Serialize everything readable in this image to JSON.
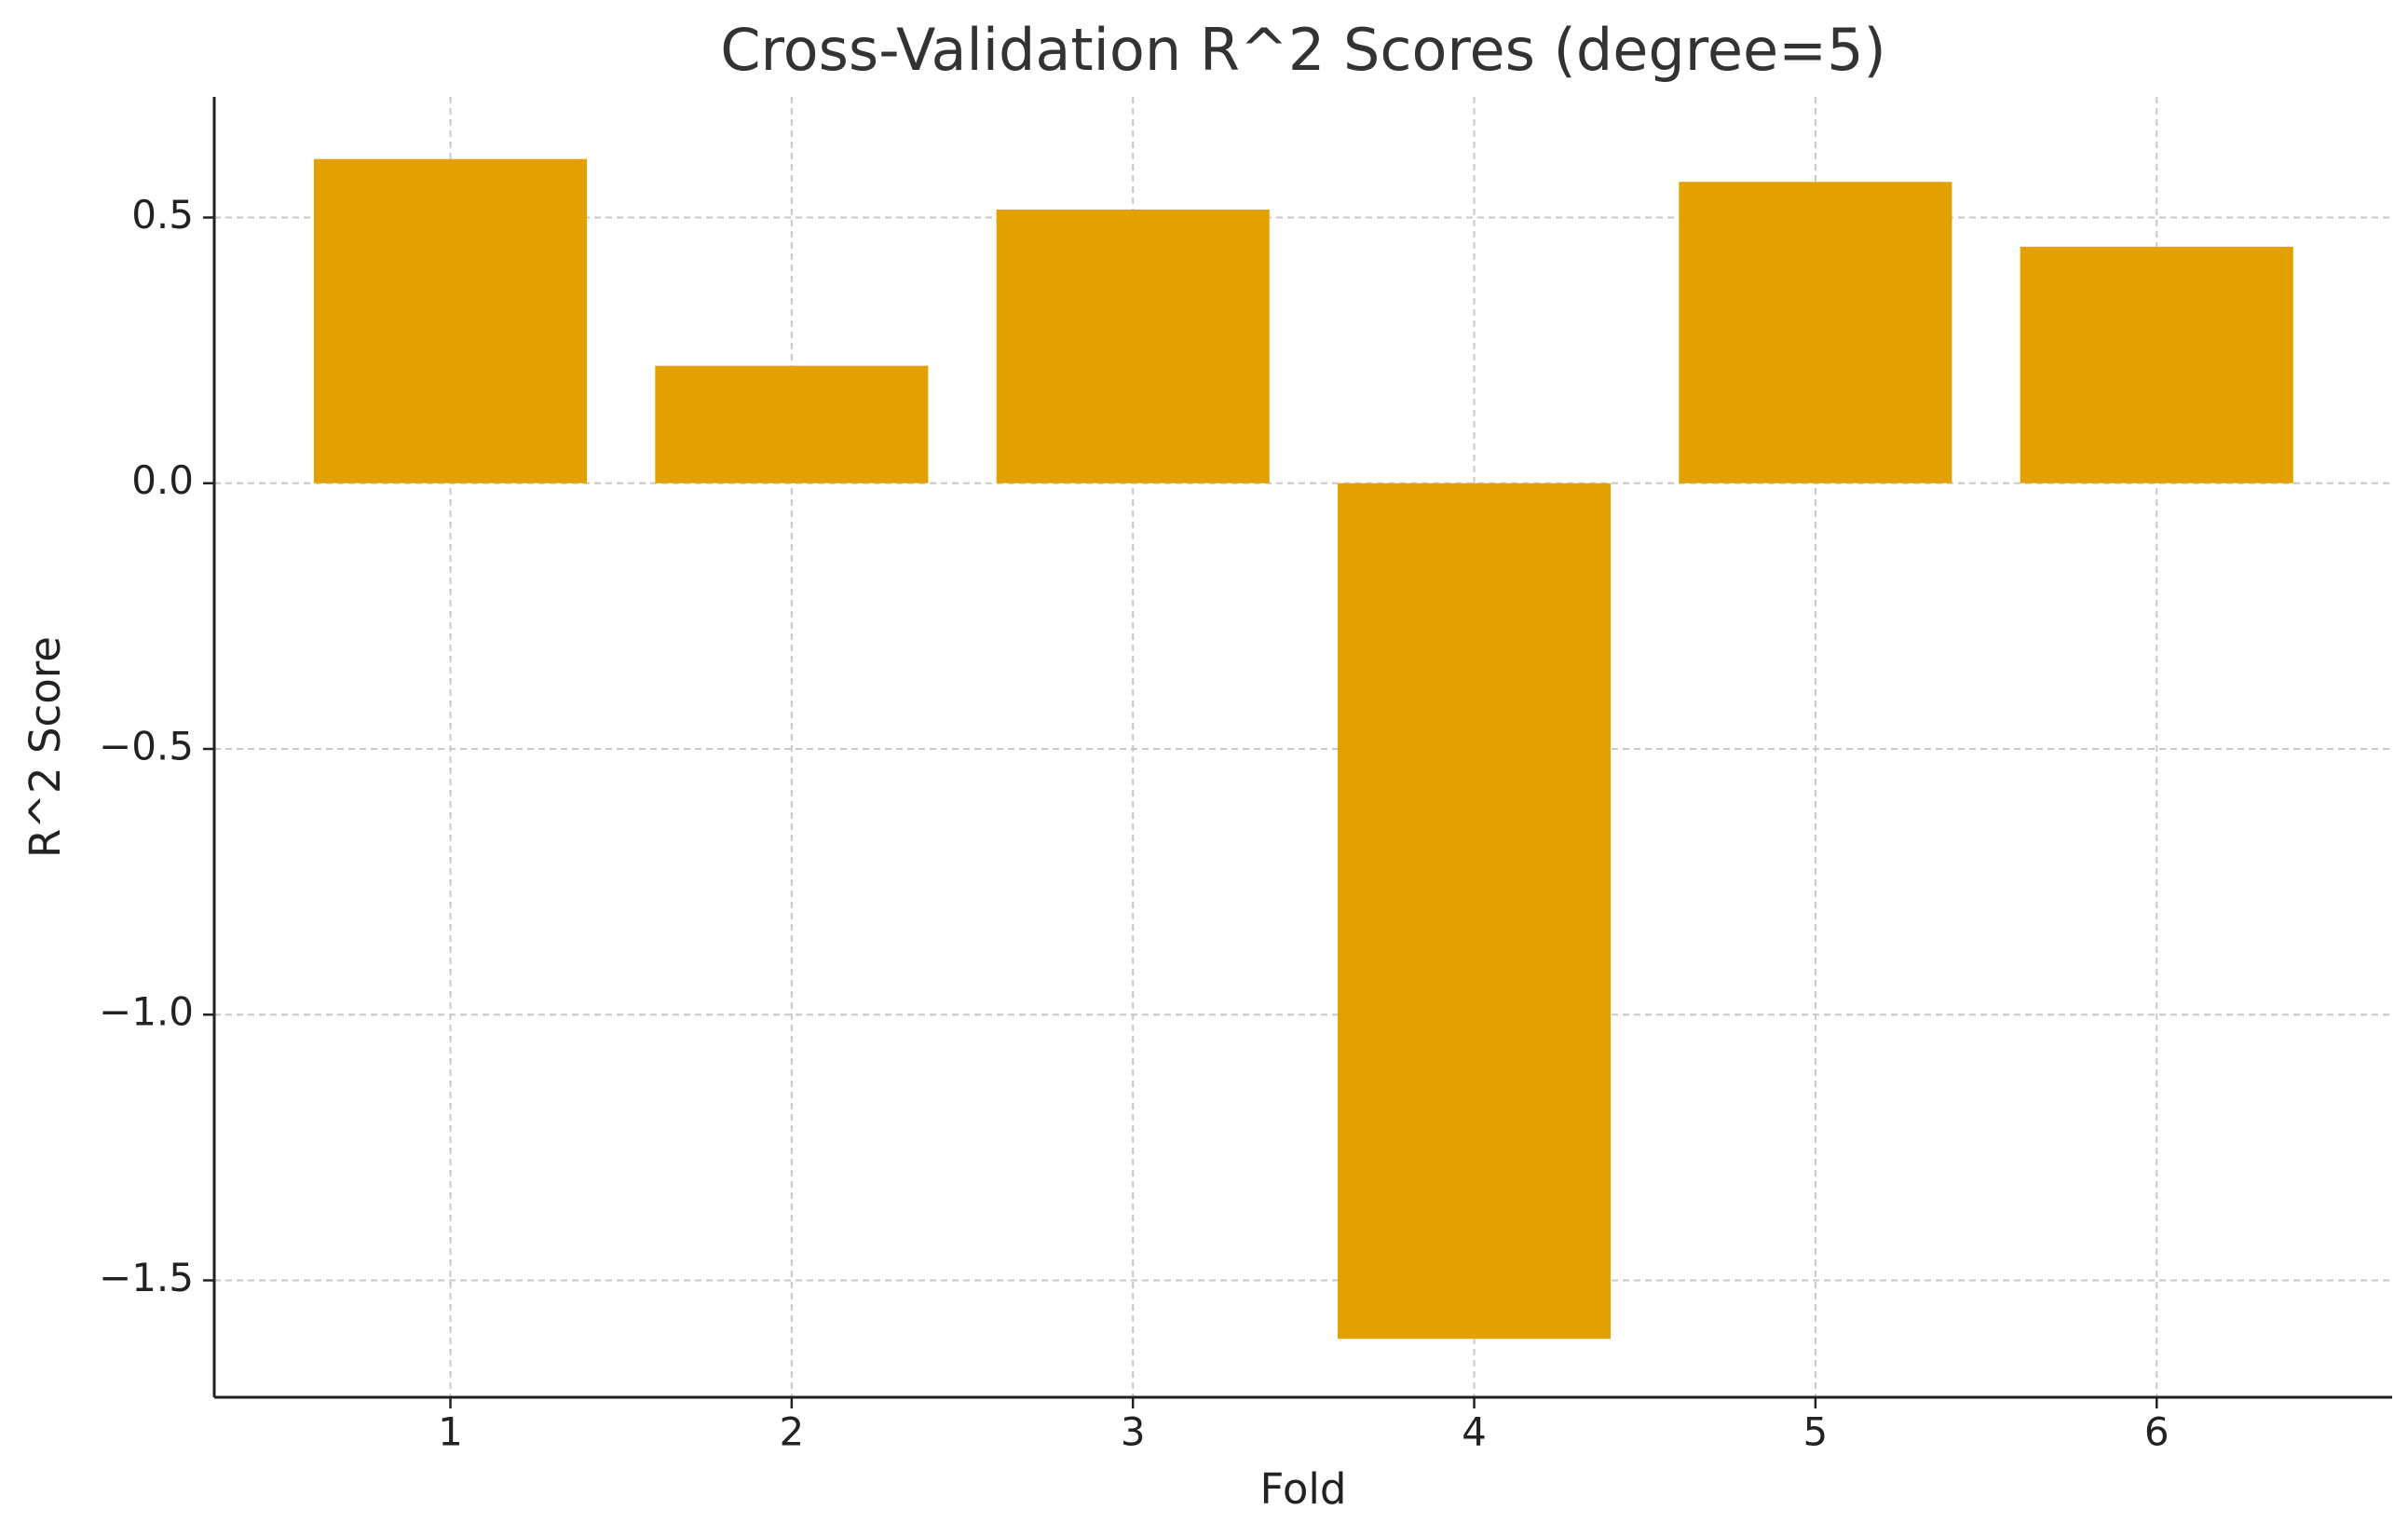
{
  "chart_data": {
    "type": "bar",
    "title": "Cross-Validation R^2 Scores (degree=5)",
    "x_label": "Fold",
    "y_label": "R^2 Score",
    "x": [
      1,
      2,
      3,
      4,
      5,
      6
    ],
    "values": [
      0.61,
      0.221,
      0.515,
      -1.61,
      0.567,
      0.445
    ],
    "color": "#e3a100",
    "xlim": [
      0.308,
      6.69
    ],
    "xticks": [
      1,
      2,
      3,
      4,
      5,
      6
    ],
    "ylim": [
      -1.72,
      0.727
    ],
    "yticks": [
      {
        "value": -1.5,
        "label": "−1.5"
      },
      {
        "value": -1.0,
        "label": "−1.0"
      },
      {
        "value": -0.5,
        "label": "−0.5"
      },
      {
        "value": 0,
        "label": "0.0"
      },
      0.5
    ],
    "grid": true
  }
}
